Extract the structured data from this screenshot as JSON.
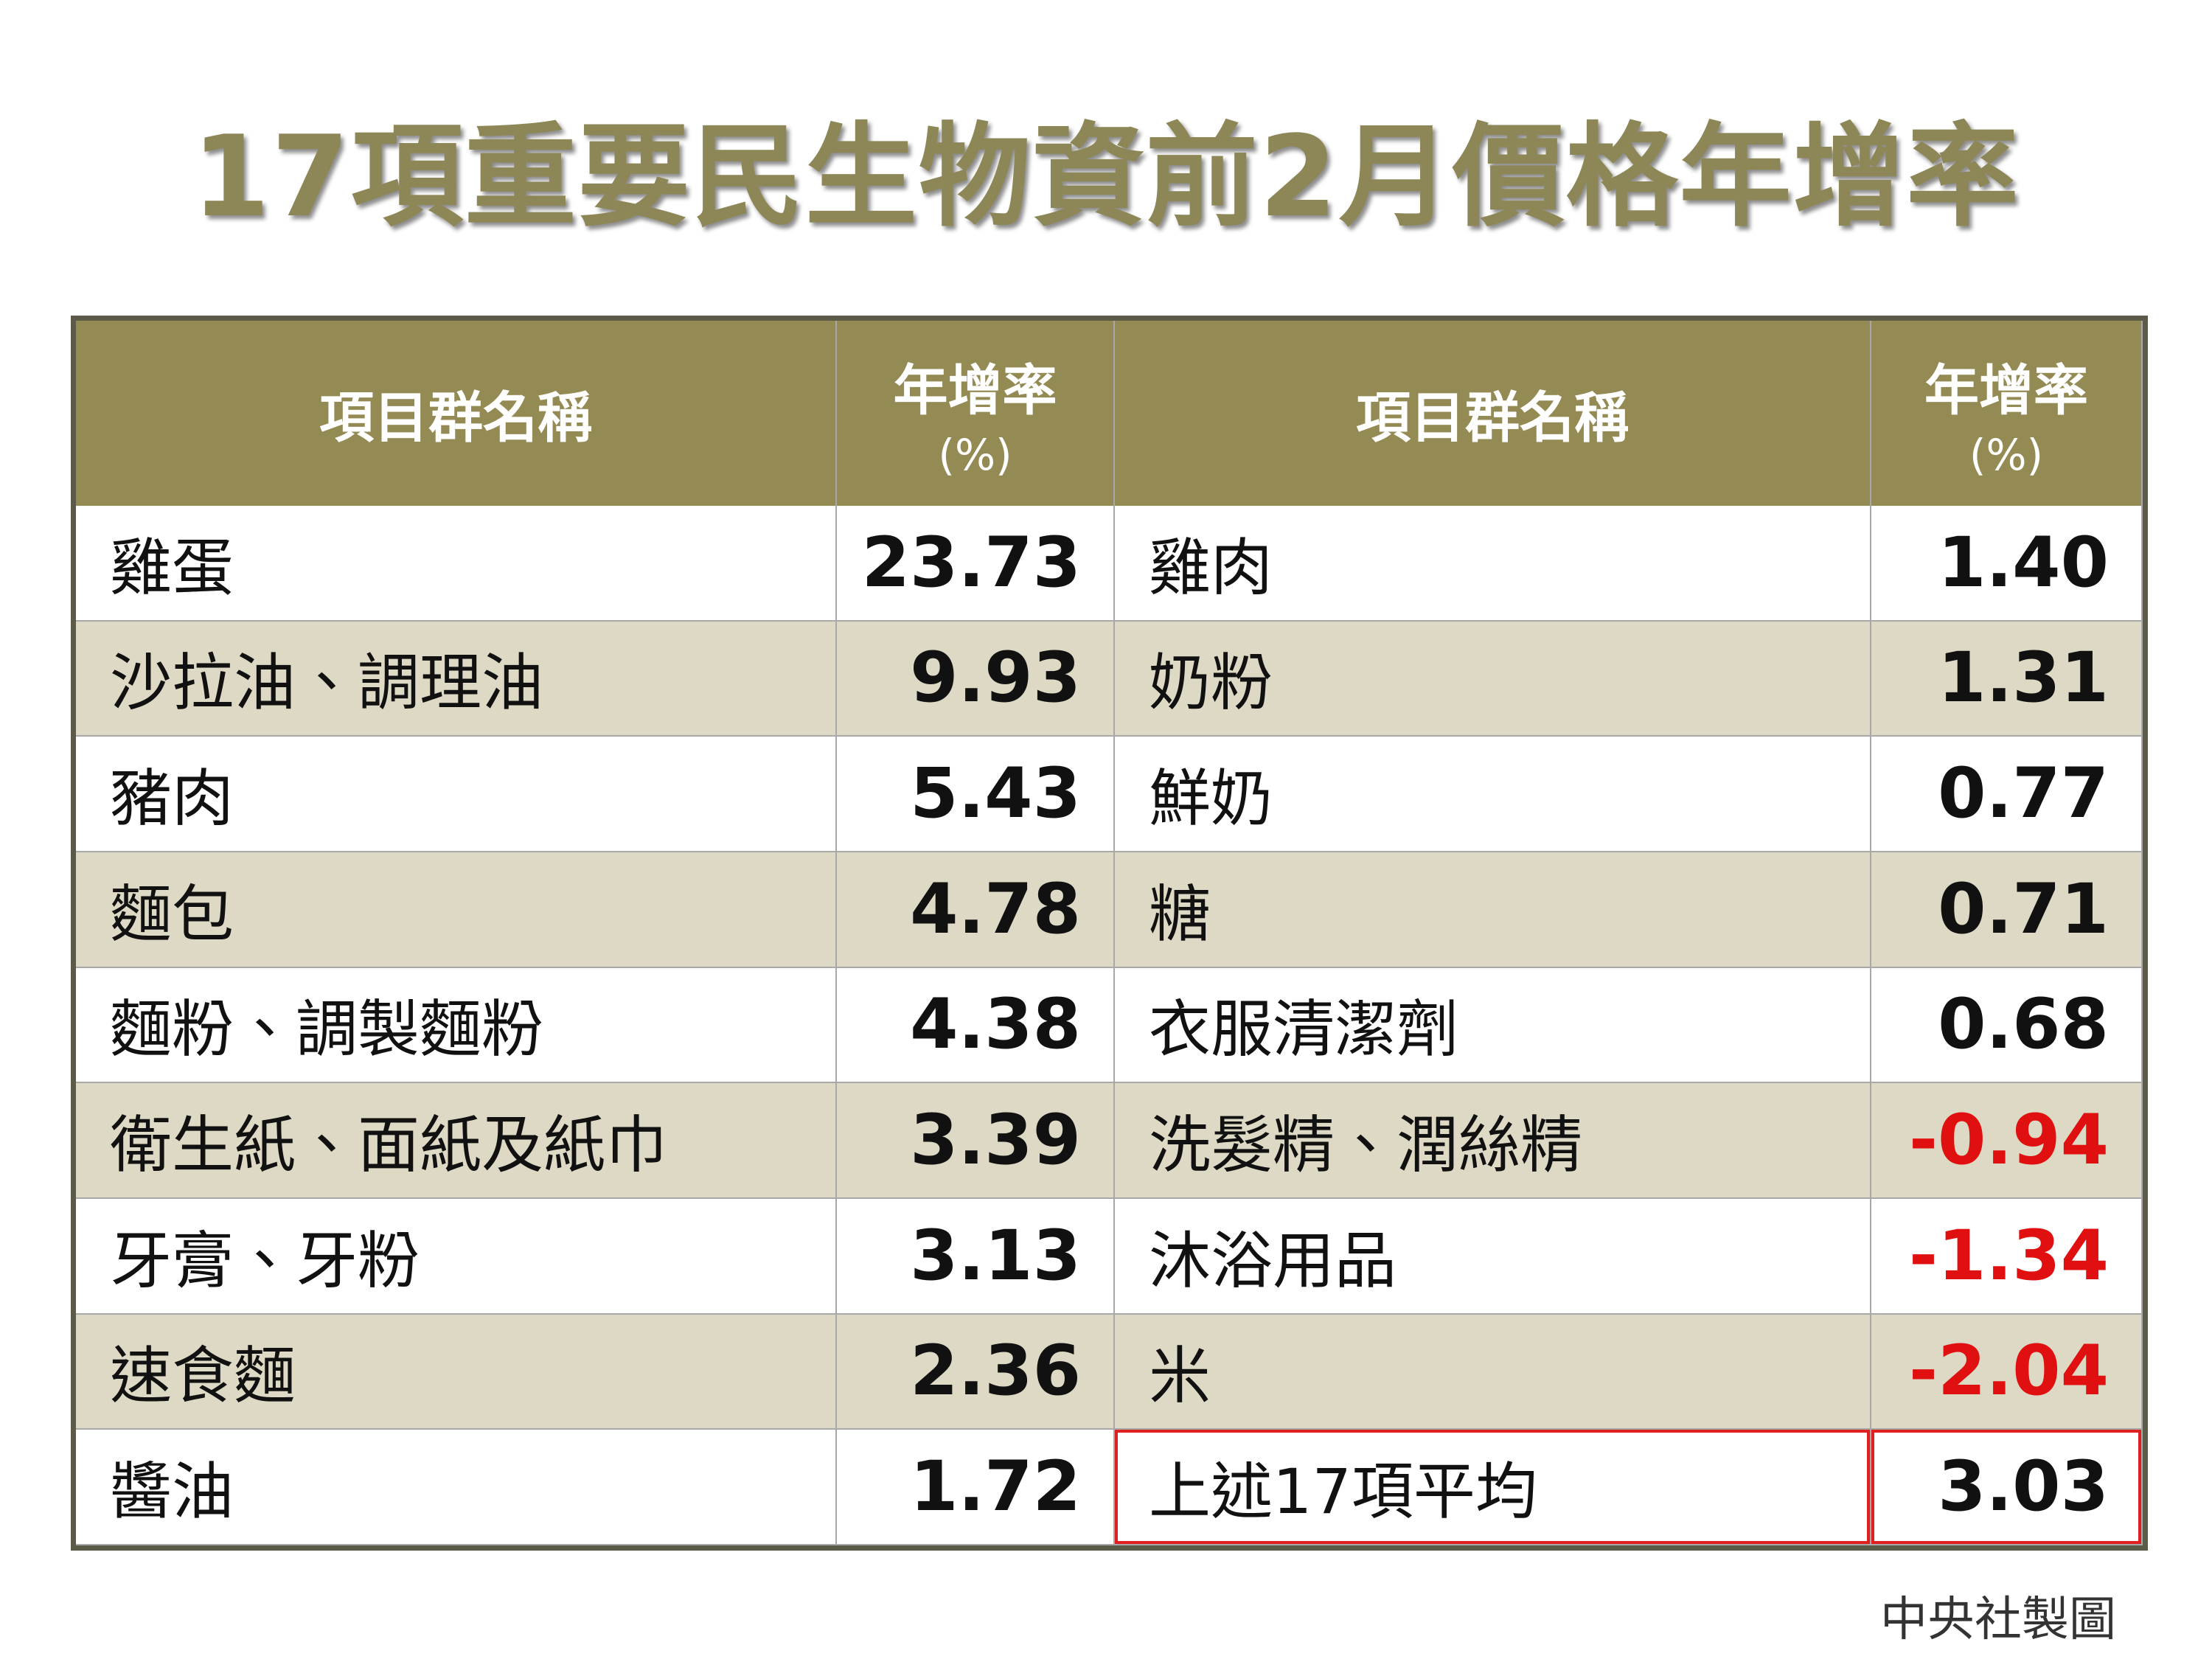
{
  "title": "17項重要民生物資前2月價格年增率",
  "table": {
    "header": [
      [
        "項目群名稱"
      ],
      [
        "年增率",
        "(%)"
      ],
      [
        "項目群名稱"
      ],
      [
        "年增率",
        "(%)"
      ]
    ],
    "rows": [
      [
        "雞蛋",
        "23.73",
        "雞肉",
        "1.40"
      ],
      [
        "沙拉油、調理油",
        "9.93",
        "奶粉",
        "1.31"
      ],
      [
        "豬肉",
        "5.43",
        "鮮奶",
        "0.77"
      ],
      [
        "麵包",
        "4.78",
        "糖",
        "0.71"
      ],
      [
        "麵粉、調製麵粉",
        "4.38",
        "衣服清潔劑",
        "0.68"
      ],
      [
        "衛生紙、面紙及紙巾",
        "3.39",
        "洗髮精、潤絲精",
        "-0.94"
      ],
      [
        "牙膏、牙粉",
        "3.13",
        "沐浴用品",
        "-1.34"
      ],
      [
        "速食麵",
        "2.36",
        "米",
        "-2.04"
      ],
      [
        "醬油",
        "1.72",
        "上述17項平均",
        "3.03"
      ]
    ]
  },
  "source": "中央社製圖"
}
